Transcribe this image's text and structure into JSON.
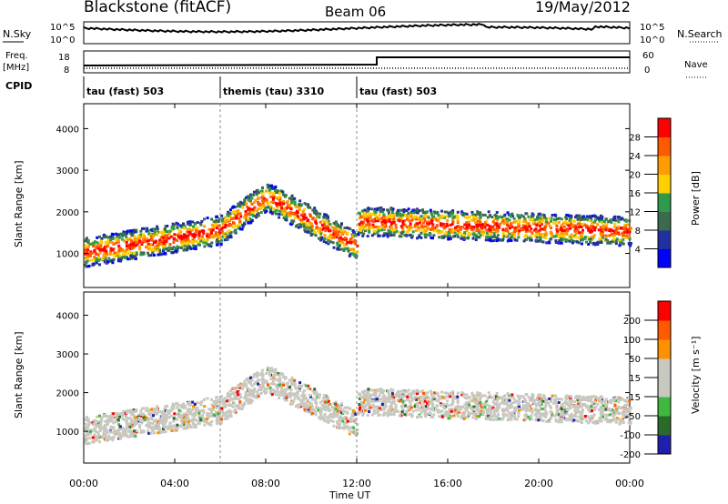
{
  "header": {
    "station": "Blackstone (fitACF)",
    "beam": "Beam 06",
    "date": "19/May/2012"
  },
  "noise_panel": {
    "left_label": "N.Sky",
    "right_label": "N.Search",
    "left_ticks": [
      "10^5",
      "10^0"
    ],
    "right_ticks": [
      "10^5",
      "10^0"
    ]
  },
  "freq_panel": {
    "left_label_line1": "Freq.",
    "left_label_line2": "[MHz]",
    "left_ticks": [
      "18",
      "8"
    ],
    "right_ticks": [
      "60",
      "0"
    ],
    "right_label": "Nave"
  },
  "cpid": {
    "label": "CPID",
    "segments": [
      {
        "label": "tau (fast) 503",
        "start": 0,
        "end": 6
      },
      {
        "label": "themis (tau) 3310",
        "start": 6,
        "end": 12
      },
      {
        "label": "tau (fast) 503",
        "start": 12,
        "end": 24
      }
    ]
  },
  "colors": {
    "power_scale": [
      "#0000ff",
      "#2030a0",
      "#3c6a4e",
      "#2e9a4a",
      "#ffd000",
      "#ff9c00",
      "#ff5a00",
      "#ff0000"
    ],
    "velocity_scale": [
      "#2020b0",
      "#2a6a2a",
      "#40b840",
      "#c8c8c0",
      "#c8c8c0",
      "#ff9000",
      "#ff5a00",
      "#ff0000"
    ]
  },
  "chart_data": [
    {
      "type": "heatmap",
      "panel": "power",
      "ylabel": "Slant Range [km]",
      "yticks": [
        "1000",
        "2000",
        "3000",
        "4000"
      ],
      "ylim": [
        180,
        4600
      ],
      "xlim": [
        0,
        24
      ],
      "colorbar_label": "Power [dB]",
      "colorbar_ticks": [
        "4",
        "8",
        "12",
        "16",
        "20",
        "24",
        "28"
      ],
      "colorbar_range": [
        0,
        32
      ]
    },
    {
      "type": "heatmap",
      "panel": "velocity",
      "ylabel": "Slant Range [km]",
      "yticks": [
        "1000",
        "2000",
        "3000",
        "4000"
      ],
      "ylim": [
        180,
        4600
      ],
      "xlim": [
        0,
        24
      ],
      "colorbar_label": "Velocity [m s⁻¹]",
      "colorbar_ticks": [
        "200",
        "100",
        "50",
        "15",
        "-15",
        "-50",
        "-100",
        "-200"
      ]
    }
  ],
  "xaxis": {
    "label": "Time UT",
    "ticks": [
      "00:00",
      "04:00",
      "08:00",
      "12:00",
      "16:00",
      "20:00",
      "00:00"
    ]
  }
}
